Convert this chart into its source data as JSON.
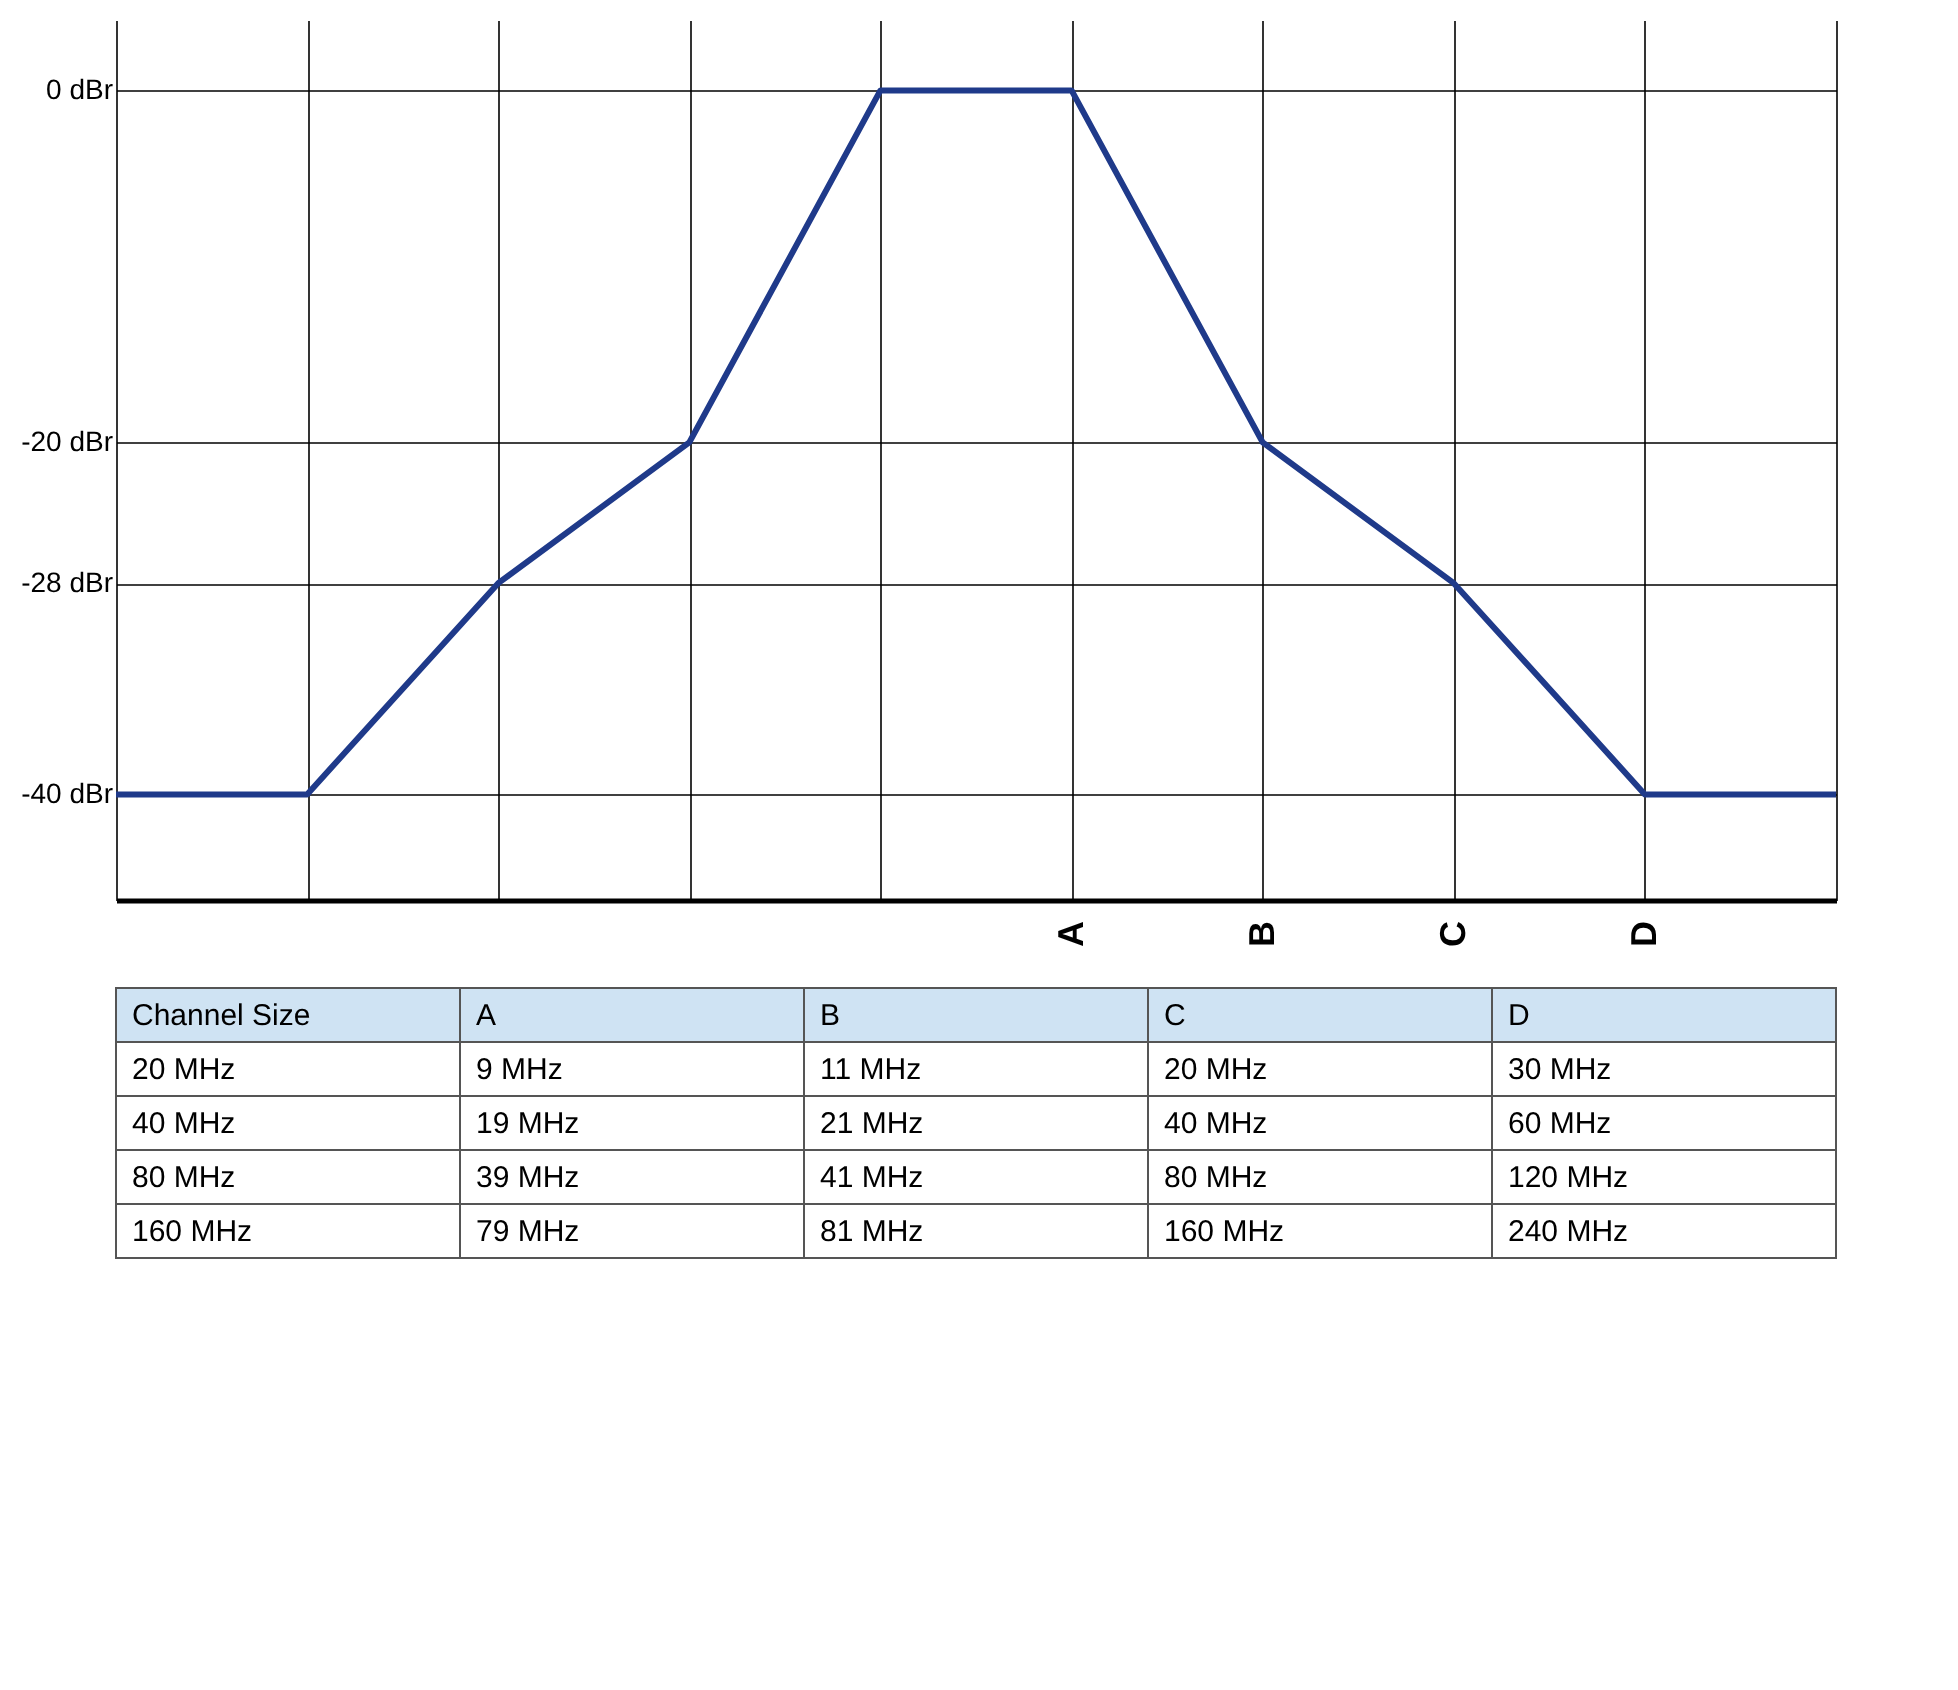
{
  "chart_data": {
    "type": "line",
    "categories": [
      null,
      null,
      null,
      null,
      null,
      "A",
      "B",
      "C",
      "D",
      null
    ],
    "series": [
      {
        "color": "#1f3a8a",
        "values": [
          -40,
          -40,
          -28,
          -20,
          0,
          0,
          -20,
          -28,
          -40,
          -40
        ]
      }
    ],
    "ylim": [
      -46,
      4
    ],
    "yticks": [
      {
        "value": 0,
        "label": "0 dBr"
      },
      {
        "value": -20,
        "label": "-20 dBr"
      },
      {
        "value": -28,
        "label": "-28 dBr"
      },
      {
        "value": -40,
        "label": "-40 dBr"
      }
    ],
    "grid": true,
    "line_style": "solid",
    "marker": "none",
    "annotations": [
      "Channel Size",
      "A",
      "B",
      "C",
      "D",
      "20 MHz",
      "9 MHz",
      "11 MHz",
      "20 MHz",
      "30 MHz",
      "40 MHz",
      "19 MHz",
      "21 MHz",
      "40 MHz",
      "60 MHz",
      "80 MHz",
      "39 MHz",
      "41 MHz",
      "80 MHz",
      "120 MHz",
      "160 MHz",
      "79 MHz",
      "81 MHz",
      "160 MHz",
      "240 MHz"
    ]
  }
}
